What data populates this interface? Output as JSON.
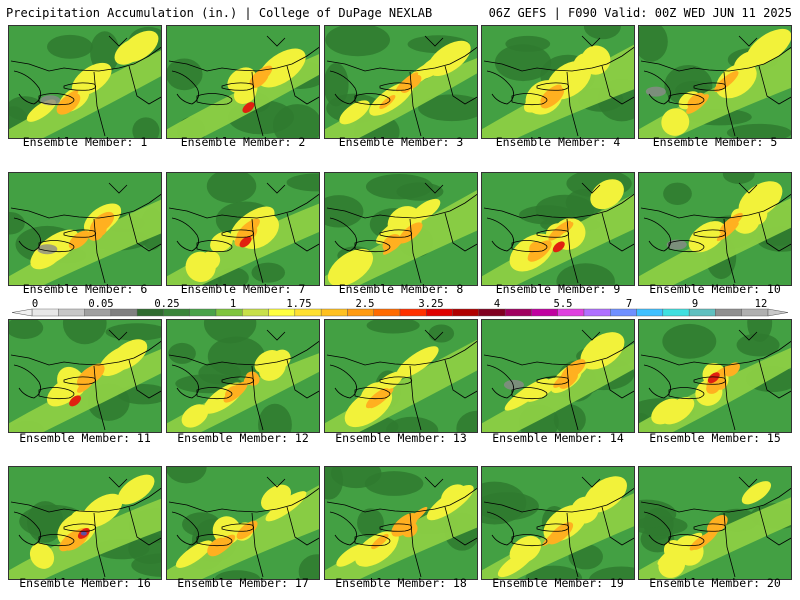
{
  "header": {
    "left": "Precipitation Accumulation (in.) | College of DuPage NEXLAB",
    "right": "06Z GEFS | F090 Valid: 00Z WED JUN 11 2025"
  },
  "members": [
    "Ensemble Member: 1",
    "Ensemble Member: 2",
    "Ensemble Member: 3",
    "Ensemble Member: 4",
    "Ensemble Member: 5",
    "Ensemble Member: 6",
    "Ensemble Member: 7",
    "Ensemble Member: 8",
    "Ensemble Member: 9",
    "Ensemble Member: 10",
    "Ensemble Member: 11",
    "Ensemble Member: 12",
    "Ensemble Member: 13",
    "Ensemble Member: 14",
    "Ensemble Member: 15",
    "Ensemble Member: 16",
    "Ensemble Member: 17",
    "Ensemble Member: 18",
    "Ensemble Member: 19",
    "Ensemble Member: 20"
  ],
  "colorbar": {
    "labels": [
      "0",
      "0.05",
      "0.25",
      "1",
      "1.75",
      "2.5",
      "3.25",
      "4",
      "5.5",
      "7",
      "9",
      "12"
    ],
    "colors": [
      "#e8e8e8",
      "#c8c8c8",
      "#a0a0a0",
      "#808080",
      "#2f6b2f",
      "#3a853a",
      "#4aa34a",
      "#7fc43f",
      "#c8e04a",
      "#ffff40",
      "#ffe030",
      "#ffc020",
      "#ff9a10",
      "#ff6a00",
      "#ff3000",
      "#e00000",
      "#b00000",
      "#800020",
      "#a00060",
      "#c000a0",
      "#e040e0",
      "#b070ff",
      "#7090ff",
      "#40c0ff",
      "#40e0e0",
      "#60c0c0",
      "#909090",
      "#b0b0b0"
    ]
  },
  "colors": {
    "dark_green": "#2f7a2f",
    "mid_green": "#43a043",
    "light_green": "#8ccf45",
    "yellow": "#f2f23a",
    "orange": "#ffb020",
    "red": "#e02010",
    "dark_red": "#a00010",
    "purple": "#6050a0",
    "gray": "#8a8a8a"
  }
}
